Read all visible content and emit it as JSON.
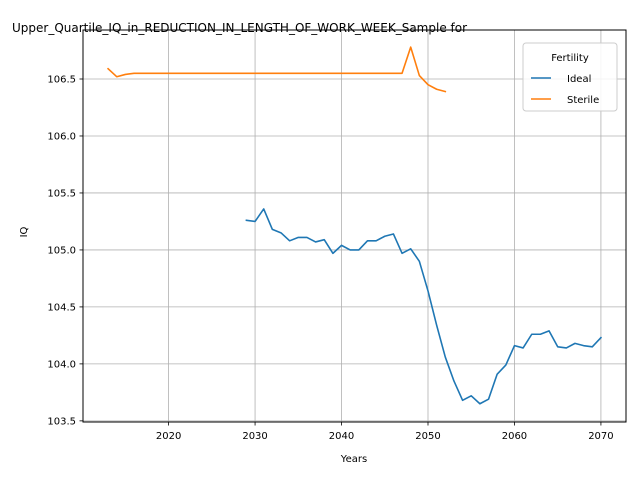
{
  "chart_data": {
    "type": "line",
    "title": "Upper_Quartile_IQ_in_REDUCTION_IN_LENGTH_OF_WORK_WEEK_Sample for",
    "xlabel": "Years",
    "ylabel": "IQ",
    "xlim": [
      2010.1,
      2072.9
    ],
    "ylim": [
      103.49,
      106.93
    ],
    "xticks": [
      2020,
      2030,
      2040,
      2050,
      2060,
      2070
    ],
    "yticks": [
      103.5,
      104.0,
      104.5,
      105.0,
      105.5,
      106.0,
      106.5
    ],
    "ytick_labels": [
      "103.5",
      "104.0",
      "104.5",
      "105.0",
      "105.5",
      "106.0",
      "106.5"
    ],
    "grid": true,
    "legend": {
      "title": "Fertility",
      "placement": "top-right"
    },
    "series": [
      {
        "name": "Ideal",
        "color": "#1f77b4",
        "x": [
          2029,
          2030,
          2031,
          2032,
          2033,
          2034,
          2035,
          2036,
          2037,
          2038,
          2039,
          2040,
          2041,
          2042,
          2043,
          2044,
          2045,
          2046,
          2047,
          2048,
          2049,
          2050,
          2051,
          2052,
          2053,
          2054,
          2055,
          2056,
          2057,
          2058,
          2059,
          2060,
          2061,
          2062,
          2063,
          2064,
          2065,
          2066,
          2067,
          2068,
          2069,
          2070
        ],
        "y": [
          105.26,
          105.25,
          105.36,
          105.18,
          105.15,
          105.08,
          105.11,
          105.11,
          105.07,
          105.09,
          104.97,
          105.04,
          105.0,
          105.0,
          105.08,
          105.08,
          105.12,
          105.14,
          104.97,
          105.01,
          104.9,
          104.64,
          104.34,
          104.06,
          103.85,
          103.68,
          103.72,
          103.65,
          103.69,
          103.91,
          103.99,
          104.16,
          104.14,
          104.26,
          104.26,
          104.29,
          104.15,
          104.14,
          104.18,
          104.16,
          104.15,
          104.23
        ]
      },
      {
        "name": "Sterile",
        "color": "#ff7f0e",
        "x": [
          2013,
          2014,
          2015,
          2016,
          2017,
          2018,
          2019,
          2020,
          2021,
          2022,
          2023,
          2024,
          2025,
          2026,
          2027,
          2028,
          2029,
          2030,
          2031,
          2032,
          2033,
          2034,
          2035,
          2036,
          2037,
          2038,
          2039,
          2040,
          2041,
          2042,
          2043,
          2044,
          2045,
          2046,
          2047,
          2048,
          2049,
          2050,
          2051,
          2052
        ],
        "y": [
          106.59,
          106.52,
          106.54,
          106.55,
          106.55,
          106.55,
          106.55,
          106.55,
          106.55,
          106.55,
          106.55,
          106.55,
          106.55,
          106.55,
          106.55,
          106.55,
          106.55,
          106.55,
          106.55,
          106.55,
          106.55,
          106.55,
          106.55,
          106.55,
          106.55,
          106.55,
          106.55,
          106.55,
          106.55,
          106.55,
          106.55,
          106.55,
          106.55,
          106.55,
          106.55,
          106.78,
          106.53,
          106.45,
          106.41,
          106.39
        ]
      }
    ]
  }
}
